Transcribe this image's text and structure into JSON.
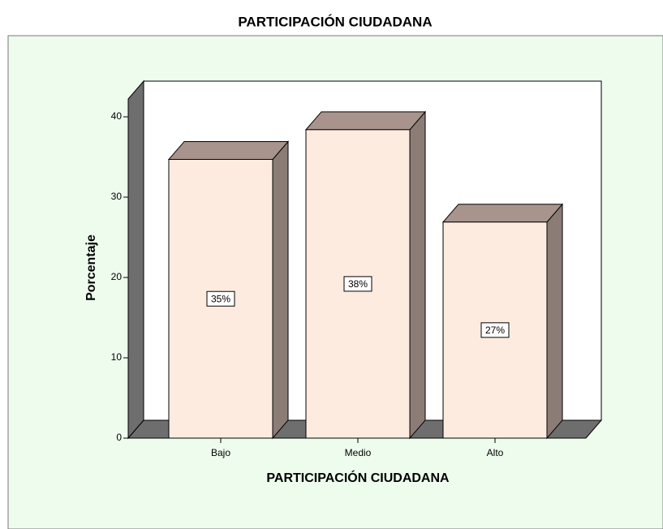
{
  "chart_data": {
    "type": "bar3d",
    "title": "PARTICIPACIÓN CIUDADANA",
    "x_label": "PARTICIPACIÓN CIUDADANA",
    "y_label": "Porcentaje",
    "categories": [
      "Bajo",
      "Medio",
      "Alto"
    ],
    "values": [
      34.7,
      38.4,
      26.9
    ],
    "value_labels": [
      "35%",
      "38%",
      "27%"
    ],
    "color": "#fdebe0",
    "ylim": [
      0,
      40
    ],
    "yticks": [
      0,
      10,
      20,
      30,
      40
    ]
  }
}
